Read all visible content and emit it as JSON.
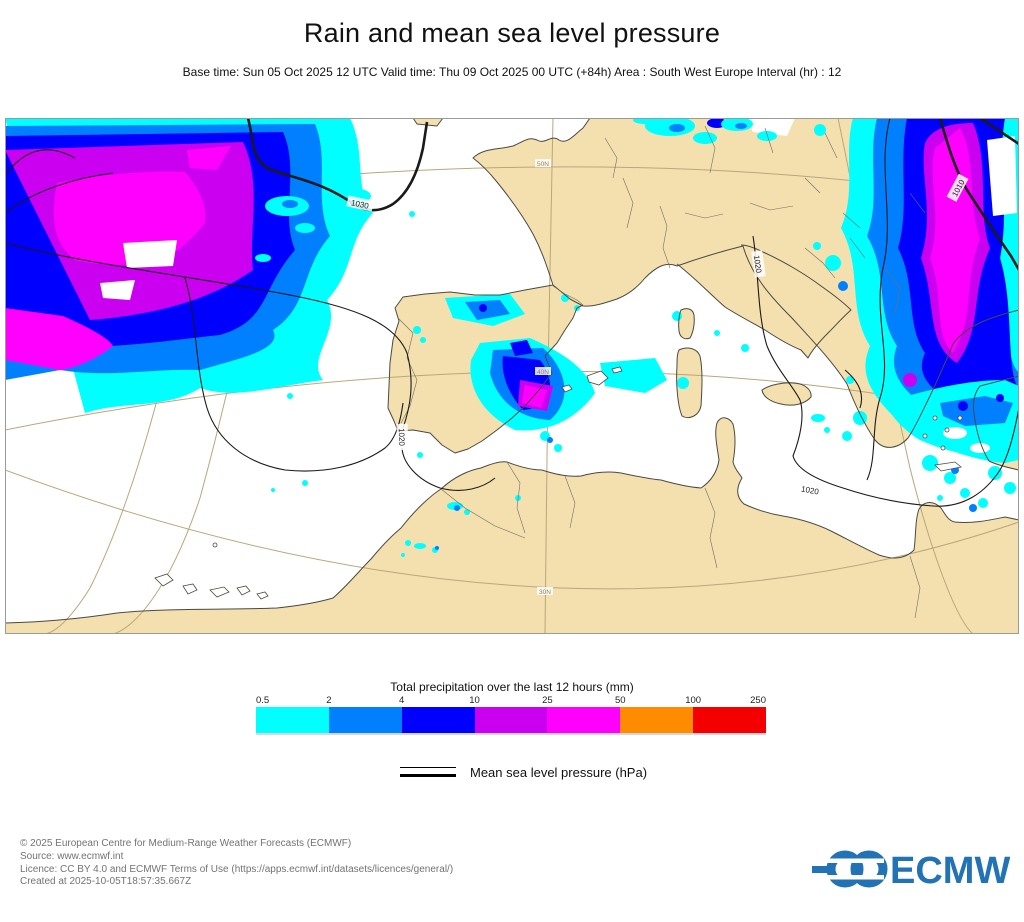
{
  "header": {
    "title": "Rain and mean sea level pressure",
    "subtitle": "Base time: Sun 05 Oct 2025 12 UTC Valid time: Thu 09 Oct 2025 00 UTC (+84h) Area : South West Europe Interval (hr) : 12"
  },
  "map": {
    "area": "South West Europe",
    "graticule_labels": [
      "50N",
      "40N",
      "30N"
    ],
    "isobar_labels": [
      "1030",
      "1020",
      "1020",
      "1020",
      "1010"
    ],
    "colors": {
      "land": "#f4dfae",
      "sea": "#ffffff",
      "graticule": "#b9a77c",
      "isobar": "#1a1a1a"
    }
  },
  "legend": {
    "precip_title": "Total precipitation over the last 12 hours (mm)",
    "ticks": [
      "0.5",
      "2",
      "4",
      "10",
      "25",
      "50",
      "100",
      "250"
    ],
    "scale_colors": [
      "#00ffff",
      "#0080ff",
      "#0000ff",
      "#cc00f0",
      "#ff00ff",
      "#ff8c00",
      "#f40000"
    ],
    "pressure_label": "Mean sea level pressure (hPa)"
  },
  "footer": {
    "lines": [
      "© 2025 European Centre for Medium-Range Weather Forecasts (ECMWF)",
      "Source: www.ecmwf.int",
      "Licence: CC BY 4.0 and ECMWF Terms of Use (https://apps.ecmwf.int/datasets/licences/general/)",
      "Created at 2025-10-05T18:57:35.667Z"
    ],
    "logo_text": "ECMWF",
    "logo_color": "#2173b6"
  }
}
